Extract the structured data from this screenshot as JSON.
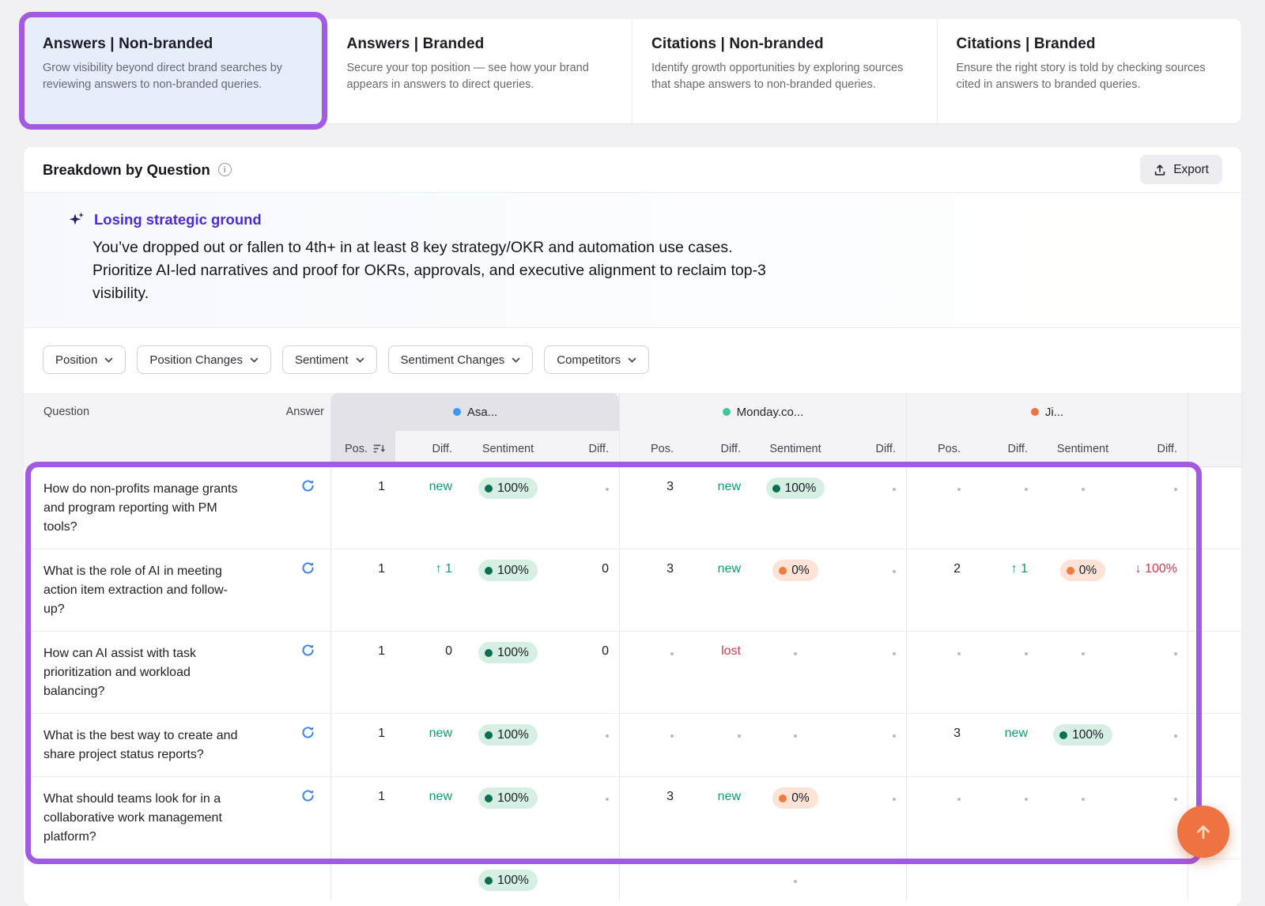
{
  "tabs": [
    {
      "title": "Answers | Non-branded",
      "desc": "Grow visibility beyond direct brand searches by reviewing answers to non-branded queries.",
      "selected": true
    },
    {
      "title": "Answers | Branded",
      "desc": "Secure your top position — see how your brand appears in answers to direct queries.",
      "selected": false
    },
    {
      "title": "Citations | Non-branded",
      "desc": "Identify growth opportunities by exploring sources that shape answers to non-branded queries.",
      "selected": false
    },
    {
      "title": "Citations | Branded",
      "desc": "Ensure the right story is told by checking sources cited in answers to branded queries.",
      "selected": false
    }
  ],
  "panel": {
    "title": "Breakdown by Question",
    "info_icon": "i",
    "export_label": "Export"
  },
  "insight": {
    "title": "Losing strategic ground",
    "body": "You’ve dropped out or fallen to 4th+ in at least 8 key strategy/OKR and automation use cases. Prioritize AI-led narratives and proof for OKRs, approvals, and executive alignment to reclaim top-3 visibility."
  },
  "filters": [
    {
      "label": "Position"
    },
    {
      "label": "Position Changes"
    },
    {
      "label": "Sentiment"
    },
    {
      "label": "Sentiment Changes"
    },
    {
      "label": "Competitors"
    }
  ],
  "table": {
    "question_header": "Question",
    "answer_header": "Answer",
    "groups": [
      {
        "name": "Asa...",
        "color": "#3f97f4"
      },
      {
        "name": "Monday.co...",
        "color": "#3fc79a"
      },
      {
        "name": "Ji...",
        "color": "#f0713a"
      }
    ],
    "subcols": [
      "Pos.",
      "Diff.",
      "Sentiment",
      "Diff."
    ],
    "rows": [
      {
        "q": "How do non-profits manage grants and program reporting with PM tools?",
        "cells": [
          {
            "t": "num",
            "v": "1"
          },
          {
            "t": "pos",
            "v": "new"
          },
          {
            "t": "pill",
            "c": "green",
            "v": "100%"
          },
          {
            "t": "dot"
          },
          {
            "t": "num",
            "v": "3"
          },
          {
            "t": "pos",
            "v": "new"
          },
          {
            "t": "pill",
            "c": "green",
            "v": "100%"
          },
          {
            "t": "dot"
          },
          {
            "t": "dot"
          },
          {
            "t": "dot"
          },
          {
            "t": "dot"
          },
          {
            "t": "dot"
          }
        ]
      },
      {
        "q": "What is the role of AI in meeting action item extraction and follow-up?",
        "cells": [
          {
            "t": "num",
            "v": "1"
          },
          {
            "t": "pos",
            "v": "↑ 1"
          },
          {
            "t": "pill",
            "c": "green",
            "v": "100%"
          },
          {
            "t": "num",
            "v": "0"
          },
          {
            "t": "num",
            "v": "3"
          },
          {
            "t": "pos",
            "v": "new"
          },
          {
            "t": "pill",
            "c": "orange",
            "v": "0%"
          },
          {
            "t": "dot"
          },
          {
            "t": "num",
            "v": "2"
          },
          {
            "t": "pos",
            "v": "↑ 1"
          },
          {
            "t": "pill",
            "c": "orange",
            "v": "0%"
          },
          {
            "t": "neg",
            "v": "↓ 100%"
          }
        ]
      },
      {
        "q": "How can AI assist with task prioritization and workload balancing?",
        "cells": [
          {
            "t": "num",
            "v": "1"
          },
          {
            "t": "num",
            "v": "0"
          },
          {
            "t": "pill",
            "c": "green",
            "v": "100%"
          },
          {
            "t": "num",
            "v": "0"
          },
          {
            "t": "dot"
          },
          {
            "t": "neg",
            "v": "lost"
          },
          {
            "t": "dot"
          },
          {
            "t": "dot"
          },
          {
            "t": "dot"
          },
          {
            "t": "dot"
          },
          {
            "t": "dot"
          },
          {
            "t": "dot"
          }
        ]
      },
      {
        "q": "What is the best way to create and share project status reports?",
        "cells": [
          {
            "t": "num",
            "v": "1"
          },
          {
            "t": "pos",
            "v": "new"
          },
          {
            "t": "pill",
            "c": "green",
            "v": "100%"
          },
          {
            "t": "dot"
          },
          {
            "t": "dot"
          },
          {
            "t": "dot"
          },
          {
            "t": "dot"
          },
          {
            "t": "dot"
          },
          {
            "t": "num",
            "v": "3"
          },
          {
            "t": "pos",
            "v": "new"
          },
          {
            "t": "pill",
            "c": "green",
            "v": "100%"
          },
          {
            "t": "dot"
          }
        ]
      },
      {
        "q": "What should teams look for in a collaborative work management platform?",
        "cells": [
          {
            "t": "num",
            "v": "1"
          },
          {
            "t": "pos",
            "v": "new"
          },
          {
            "t": "pill",
            "c": "green",
            "v": "100%"
          },
          {
            "t": "dot"
          },
          {
            "t": "num",
            "v": "3"
          },
          {
            "t": "pos",
            "v": "new"
          },
          {
            "t": "pill",
            "c": "orange",
            "v": "0%"
          },
          {
            "t": "dot"
          },
          {
            "t": "dot"
          },
          {
            "t": "dot"
          },
          {
            "t": "dot"
          },
          {
            "t": "dot"
          }
        ]
      },
      {
        "q": "",
        "partial": true,
        "cells": [
          null,
          null,
          {
            "t": "pill",
            "c": "green",
            "v": "100%"
          },
          null,
          null,
          null,
          {
            "t": "dot"
          },
          null,
          null,
          null,
          null,
          null
        ]
      }
    ]
  },
  "annotations": {
    "color": "#a35ae2",
    "items": [
      {
        "target": "tab-answers-non-branded"
      },
      {
        "target": "table-rows"
      }
    ]
  },
  "fab": {
    "icon": "arrow-up",
    "color": "#ee7340"
  }
}
